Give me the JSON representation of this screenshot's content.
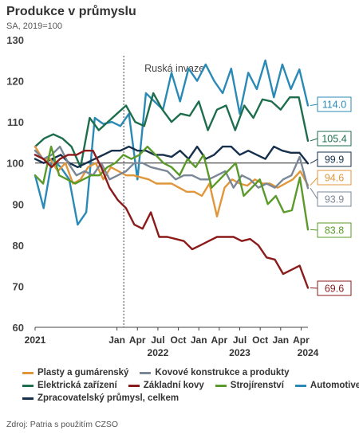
{
  "header": {
    "title": "Produkce v průmyslu",
    "subtitle": "SA, 2019=100"
  },
  "annotation": {
    "label": "Ruská invaze",
    "at": "2022-02"
  },
  "source": "Zdroj: Patria s použitím CZSO",
  "chart_data": {
    "type": "line",
    "title": "Produkce v průmyslu",
    "ylim": [
      60,
      130
    ],
    "yticks": [
      60,
      70,
      80,
      90,
      100,
      110,
      120,
      130
    ],
    "reference_line": 100,
    "x_start": "2021-01",
    "x_end": "2024-05",
    "x_tick_labels": [
      {
        "month": "2021-01",
        "label": "2021",
        "bold": true
      },
      {
        "month": "2022-01",
        "label": "Jan",
        "bold": false
      },
      {
        "month": "2022-04",
        "label": "Apr",
        "bold": false
      },
      {
        "month": "2022-07",
        "label": "Jul",
        "bold": false
      },
      {
        "month": "2022-10",
        "label": "Oct",
        "bold": false
      },
      {
        "month": "2023-01",
        "label": "Jan",
        "bold": false
      },
      {
        "month": "2023-04",
        "label": "Apr",
        "bold": false
      },
      {
        "month": "2023-07",
        "label": "Jul",
        "bold": false
      },
      {
        "month": "2023-10",
        "label": "Oct",
        "bold": false
      },
      {
        "month": "2024-01",
        "label": "Jan",
        "bold": false
      },
      {
        "month": "2024-04",
        "label": "Apr",
        "bold": false
      }
    ],
    "x_year_labels": [
      {
        "month": "2022-07",
        "label": "2022"
      },
      {
        "month": "2023-07",
        "label": "2023"
      },
      {
        "month": "2024-05",
        "label": "2024"
      }
    ],
    "grid": false,
    "legend_position": "bottom",
    "series": [
      {
        "name": "Automotive",
        "color": "#2a8ab5",
        "end_label": "114.0",
        "label_bg": "#ffffff",
        "values": [
          97,
          89,
          101,
          99,
          96,
          85,
          88,
          111,
          109.5,
          110,
          109,
          112,
          96,
          117,
          115,
          113,
          122,
          115,
          123,
          120,
          124,
          120,
          117,
          123,
          112,
          122,
          118,
          125,
          116,
          124,
          118,
          122.8,
          114
        ]
      },
      {
        "name": "Elektrická zařízení",
        "color": "#1e6e4e",
        "end_label": "105.4",
        "label_bg": "#ffffff",
        "values": [
          104,
          106,
          107,
          106,
          104,
          99,
          111,
          108,
          110,
          112,
          114,
          110,
          109,
          117,
          113,
          110,
          112,
          111.5,
          115,
          108,
          113,
          114,
          108,
          114,
          111,
          115.5,
          115,
          113,
          116,
          116,
          105.4
        ]
      },
      {
        "name": "Zpracovatelský průmysl, celkem",
        "color": "#16304c",
        "end_label": "99.9",
        "label_bg": "#ffffff",
        "values": [
          101,
          100,
          101,
          102,
          100,
          99,
          100,
          101,
          102,
          103,
          103,
          104,
          103,
          103,
          102,
          102,
          101.5,
          103,
          101,
          104,
          101,
          102,
          104,
          104,
          102,
          103,
          102,
          101,
          104,
          103,
          102.5,
          102.5,
          99.9
        ]
      },
      {
        "name": "Plasty a gumárenský",
        "color": "#e0963a",
        "end_label": "94.6",
        "label_bg": "#ffffff",
        "values": [
          104,
          101,
          101,
          98,
          100,
          95,
          96,
          99,
          100,
          96,
          99,
          98,
          97,
          97,
          96.5,
          96,
          95,
          95,
          95,
          94,
          93,
          93,
          92,
          95,
          87,
          94,
          96,
          95,
          94.5,
          96,
          95,
          95,
          94,
          95,
          96,
          98,
          94.6
        ]
      },
      {
        "name": "Kovové konstrukce a produkty",
        "color": "#7a8796",
        "end_label": "93.9",
        "label_bg": "#ffffff",
        "values": [
          103,
          101,
          102,
          104,
          100,
          97,
          98,
          97,
          100,
          96,
          97,
          98,
          100,
          100,
          99,
          98.5,
          98,
          96,
          97,
          97,
          96,
          96,
          97,
          98,
          94,
          97,
          96,
          94,
          95,
          94,
          96,
          97,
          101.5,
          93.9
        ]
      },
      {
        "name": "Strojírenství",
        "color": "#5a9a2a",
        "end_label": "83.8",
        "label_bg": "#ffffff",
        "values": [
          97,
          95,
          104,
          97,
          96,
          95,
          96,
          97,
          97,
          99,
          100,
          102,
          101,
          102,
          104,
          102,
          100,
          99,
          97,
          101,
          99,
          102,
          94,
          96,
          98,
          100,
          92,
          94,
          96,
          90,
          92,
          88,
          88.5,
          96.5,
          83.8
        ]
      },
      {
        "name": "Základní kovy",
        "color": "#8b1a1a",
        "end_label": "69.6",
        "label_bg": "#ffffff",
        "values": [
          102,
          101,
          99,
          101,
          102,
          102,
          103,
          103,
          99,
          94,
          91,
          89,
          85,
          84,
          88,
          82,
          82,
          81.5,
          81,
          79,
          80,
          81,
          82,
          82,
          82,
          81,
          81.5,
          80,
          77,
          76.5,
          73,
          74,
          75,
          69.6
        ]
      }
    ]
  },
  "legend": {
    "rows": [
      [
        {
          "label": "Plasty a gumárenský",
          "color": "#e0963a"
        },
        {
          "label": "Kovové konstrukce a produkty",
          "color": "#7a8796"
        }
      ],
      [
        {
          "label": "Elektrická zařízení",
          "color": "#1e6e4e"
        },
        {
          "label": "Základní kovy",
          "color": "#8b1a1a"
        },
        {
          "label": "Strojírenství",
          "color": "#5a9a2a"
        },
        {
          "label": "Automotive",
          "color": "#2a8ab5"
        }
      ],
      [
        {
          "label": "Zpracovatelský průmysl, celkem",
          "color": "#16304c"
        }
      ]
    ]
  }
}
